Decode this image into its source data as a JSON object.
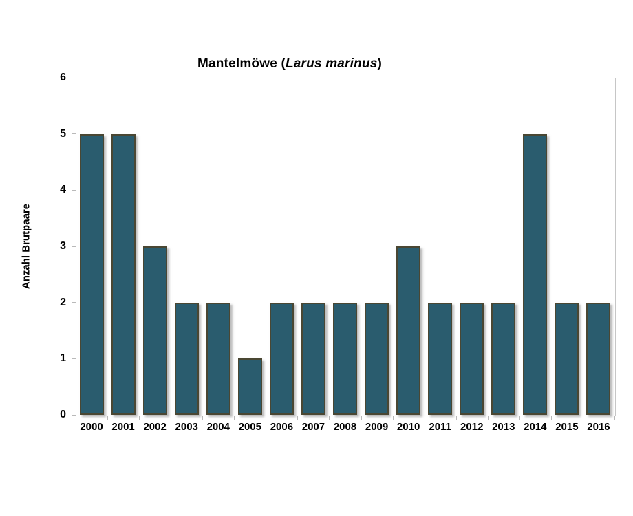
{
  "chart_data": {
    "type": "bar",
    "title": "Mantelmöwe (Larus marinus)",
    "title_parts": {
      "prefix": "Mantelmöwe (",
      "species_italic": "Larus marinus",
      "suffix": ")"
    },
    "ylabel": "Anzahl Brutpaare",
    "xlabel": "",
    "categories": [
      "2000",
      "2001",
      "2002",
      "2003",
      "2004",
      "2005",
      "2006",
      "2007",
      "2008",
      "2009",
      "2010",
      "2011",
      "2012",
      "2013",
      "2014",
      "2015",
      "2016"
    ],
    "values": [
      5,
      5,
      3,
      2,
      2,
      1,
      2,
      2,
      2,
      2,
      3,
      2,
      2,
      2,
      5,
      2,
      2
    ],
    "ylim": [
      0,
      6
    ],
    "yticks": [
      0,
      1,
      2,
      3,
      4,
      5,
      6
    ],
    "grid": false,
    "legend": false,
    "colors": {
      "bar_fill": "#2a5c6e",
      "bar_border": "#4a4733",
      "axis": "#c6c6c6",
      "text": "#000000",
      "background": "#ffffff"
    }
  }
}
